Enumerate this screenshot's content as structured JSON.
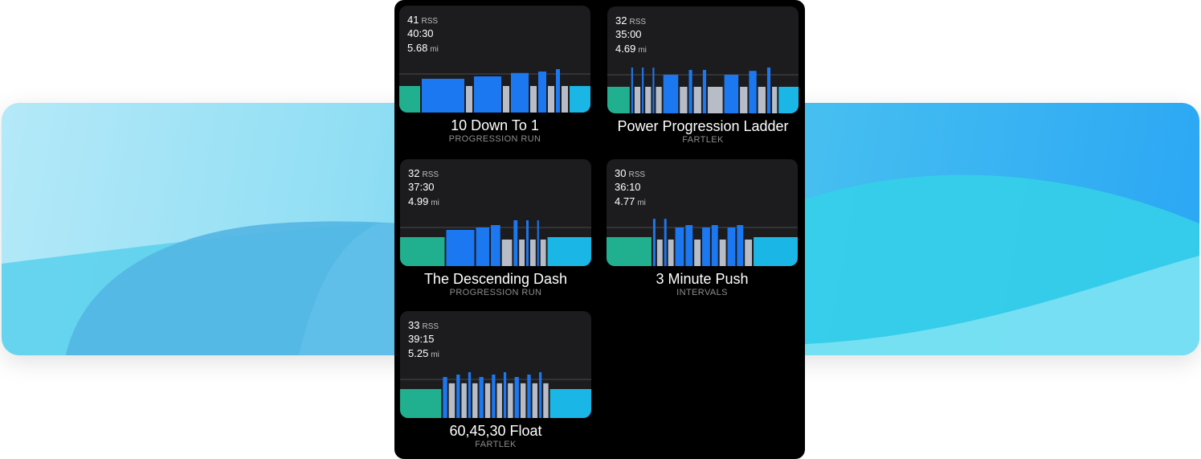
{
  "colors": {
    "warmup": "#21b08f",
    "work": "#1c78f0",
    "recovery": "#b7bcc6",
    "cooldown": "#1ab6e6",
    "card_bg": "#1c1c1e",
    "baseline": "#4a4a4e"
  },
  "workouts": [
    {
      "rss_value": "41",
      "rss_unit": "RSS",
      "duration": "40:30",
      "distance_value": "5.68",
      "distance_unit": "mi",
      "title": "10 Down To 1",
      "category": "PROGRESSION RUN",
      "segments": [
        {
          "type": "warmup",
          "length": 26,
          "intensity": 0.55
        },
        {
          "type": "work",
          "length": 53,
          "intensity": 0.7
        },
        {
          "type": "recovery",
          "length": 8,
          "intensity": 0.55
        },
        {
          "type": "work",
          "length": 34,
          "intensity": 0.75
        },
        {
          "type": "recovery",
          "length": 8,
          "intensity": 0.55
        },
        {
          "type": "work",
          "length": 22,
          "intensity": 0.82
        },
        {
          "type": "recovery",
          "length": 8,
          "intensity": 0.55
        },
        {
          "type": "work",
          "length": 10,
          "intensity": 0.85
        },
        {
          "type": "recovery",
          "length": 8,
          "intensity": 0.55
        },
        {
          "type": "work",
          "length": 5,
          "intensity": 0.9
        },
        {
          "type": "recovery",
          "length": 8,
          "intensity": 0.55
        },
        {
          "type": "cooldown",
          "length": 26,
          "intensity": 0.55
        }
      ]
    },
    {
      "rss_value": "32",
      "rss_unit": "RSS",
      "duration": "35:00",
      "distance_value": "4.69",
      "distance_unit": "mi",
      "title": "Power Progression Ladder",
      "category": "FARTLEK",
      "segments": [
        {
          "type": "warmup",
          "length": 27,
          "intensity": 0.55
        },
        {
          "type": "work",
          "length": 2,
          "intensity": 0.95
        },
        {
          "type": "recovery",
          "length": 7,
          "intensity": 0.55
        },
        {
          "type": "work",
          "length": 2,
          "intensity": 0.95
        },
        {
          "type": "recovery",
          "length": 7,
          "intensity": 0.55
        },
        {
          "type": "work",
          "length": 2,
          "intensity": 0.95
        },
        {
          "type": "recovery",
          "length": 7,
          "intensity": 0.55
        },
        {
          "type": "work",
          "length": 18,
          "intensity": 0.8
        },
        {
          "type": "recovery",
          "length": 9,
          "intensity": 0.55
        },
        {
          "type": "work",
          "length": 4,
          "intensity": 0.9
        },
        {
          "type": "recovery",
          "length": 9,
          "intensity": 0.55
        },
        {
          "type": "work",
          "length": 4,
          "intensity": 0.9
        },
        {
          "type": "recovery",
          "length": 18,
          "intensity": 0.55
        },
        {
          "type": "work",
          "length": 17,
          "intensity": 0.8
        },
        {
          "type": "recovery",
          "length": 9,
          "intensity": 0.55
        },
        {
          "type": "work",
          "length": 9,
          "intensity": 0.88
        },
        {
          "type": "recovery",
          "length": 9,
          "intensity": 0.55
        },
        {
          "type": "work",
          "length": 4,
          "intensity": 0.95
        },
        {
          "type": "recovery",
          "length": 6,
          "intensity": 0.55
        },
        {
          "type": "cooldown",
          "length": 24,
          "intensity": 0.55
        }
      ]
    },
    {
      "rss_value": "32",
      "rss_unit": "RSS",
      "duration": "37:30",
      "distance_value": "4.99",
      "distance_unit": "mi",
      "title": "The Descending Dash",
      "category": "PROGRESSION RUN",
      "segments": [
        {
          "type": "warmup",
          "length": 57,
          "intensity": 0.6
        },
        {
          "type": "work",
          "length": 36,
          "intensity": 0.75
        },
        {
          "type": "work",
          "length": 17,
          "intensity": 0.8
        },
        {
          "type": "work",
          "length": 12,
          "intensity": 0.85
        },
        {
          "type": "recovery",
          "length": 13,
          "intensity": 0.55
        },
        {
          "type": "work",
          "length": 5,
          "intensity": 0.95
        },
        {
          "type": "recovery",
          "length": 7,
          "intensity": 0.55
        },
        {
          "type": "work",
          "length": 3,
          "intensity": 0.95
        },
        {
          "type": "recovery",
          "length": 7,
          "intensity": 0.55
        },
        {
          "type": "work",
          "length": 2,
          "intensity": 0.95
        },
        {
          "type": "recovery",
          "length": 7,
          "intensity": 0.55
        },
        {
          "type": "cooldown",
          "length": 56,
          "intensity": 0.6
        }
      ]
    },
    {
      "rss_value": "30",
      "rss_unit": "RSS",
      "duration": "36:10",
      "distance_value": "4.77",
      "distance_unit": "mi",
      "title": "3 Minute Push",
      "category": "INTERVALS",
      "segments": [
        {
          "type": "warmup",
          "length": 57,
          "intensity": 0.6
        },
        {
          "type": "work",
          "length": 3,
          "intensity": 0.98
        },
        {
          "type": "recovery",
          "length": 7,
          "intensity": 0.55
        },
        {
          "type": "work",
          "length": 3,
          "intensity": 0.98
        },
        {
          "type": "recovery",
          "length": 7,
          "intensity": 0.55
        },
        {
          "type": "work",
          "length": 11,
          "intensity": 0.8
        },
        {
          "type": "work",
          "length": 9,
          "intensity": 0.85
        },
        {
          "type": "recovery",
          "length": 8,
          "intensity": 0.55
        },
        {
          "type": "work",
          "length": 10,
          "intensity": 0.8
        },
        {
          "type": "work",
          "length": 8,
          "intensity": 0.85
        },
        {
          "type": "recovery",
          "length": 8,
          "intensity": 0.55
        },
        {
          "type": "work",
          "length": 10,
          "intensity": 0.8
        },
        {
          "type": "work",
          "length": 8,
          "intensity": 0.85
        },
        {
          "type": "recovery",
          "length": 9,
          "intensity": 0.55
        },
        {
          "type": "cooldown",
          "length": 56,
          "intensity": 0.6
        }
      ]
    },
    {
      "rss_value": "33",
      "rss_unit": "RSS",
      "duration": "39:15",
      "distance_value": "5.25",
      "distance_unit": "mi",
      "title": "60,45,30 Float",
      "category": "FARTLEK",
      "segments": [
        {
          "type": "warmup",
          "length": 48,
          "intensity": 0.6
        },
        {
          "type": "work",
          "length": 5,
          "intensity": 0.85
        },
        {
          "type": "recovery",
          "length": 7,
          "intensity": 0.72
        },
        {
          "type": "work",
          "length": 4,
          "intensity": 0.9
        },
        {
          "type": "recovery",
          "length": 6,
          "intensity": 0.72
        },
        {
          "type": "work",
          "length": 3,
          "intensity": 0.95
        },
        {
          "type": "recovery",
          "length": 6,
          "intensity": 0.72
        },
        {
          "type": "work",
          "length": 5,
          "intensity": 0.85
        },
        {
          "type": "recovery",
          "length": 6,
          "intensity": 0.72
        },
        {
          "type": "work",
          "length": 4,
          "intensity": 0.9
        },
        {
          "type": "recovery",
          "length": 6,
          "intensity": 0.72
        },
        {
          "type": "work",
          "length": 3,
          "intensity": 0.95
        },
        {
          "type": "recovery",
          "length": 6,
          "intensity": 0.72
        },
        {
          "type": "work",
          "length": 5,
          "intensity": 0.85
        },
        {
          "type": "recovery",
          "length": 6,
          "intensity": 0.72
        },
        {
          "type": "work",
          "length": 4,
          "intensity": 0.9
        },
        {
          "type": "recovery",
          "length": 6,
          "intensity": 0.72
        },
        {
          "type": "work",
          "length": 3,
          "intensity": 0.95
        },
        {
          "type": "recovery",
          "length": 6,
          "intensity": 0.72
        },
        {
          "type": "cooldown",
          "length": 48,
          "intensity": 0.6
        }
      ]
    }
  ]
}
